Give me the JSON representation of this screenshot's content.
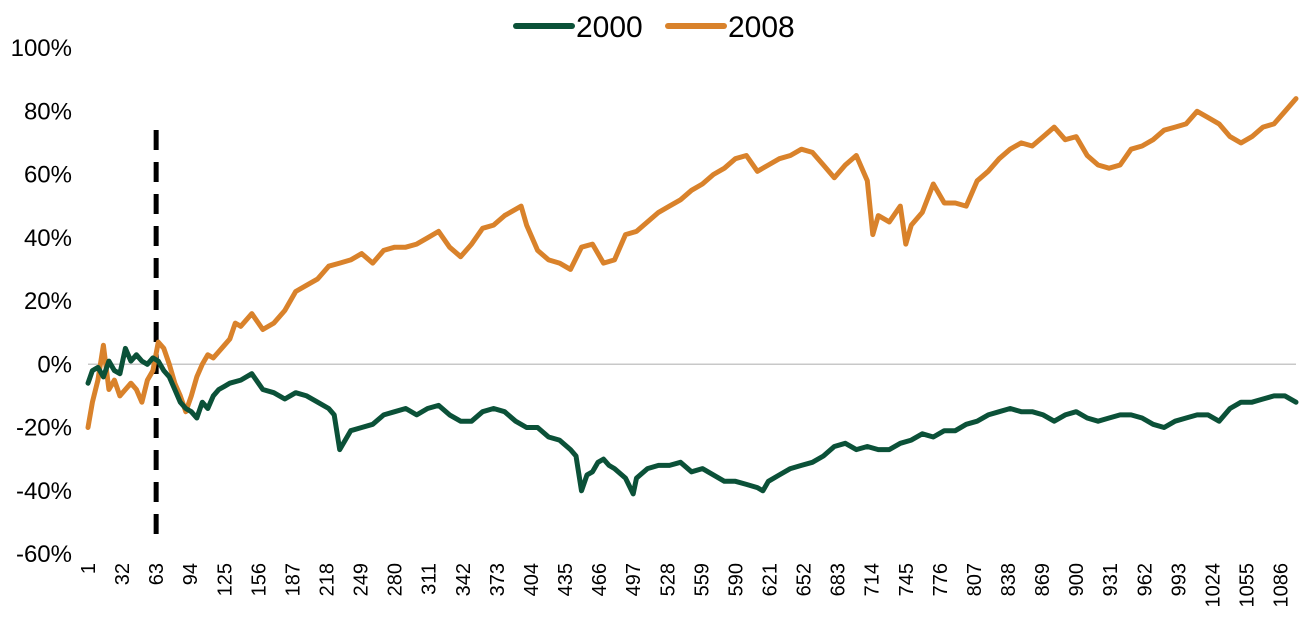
{
  "chart_data": {
    "type": "line",
    "title": "",
    "xlabel": "",
    "ylabel": "",
    "xlim": [
      1,
      1100
    ],
    "ylim": [
      -60,
      100
    ],
    "y_ticks": [
      "-60%",
      "-40%",
      "-20%",
      "0%",
      "20%",
      "40%",
      "60%",
      "80%",
      "100%"
    ],
    "y_tick_values": [
      -60,
      -40,
      -20,
      0,
      20,
      40,
      60,
      80,
      100
    ],
    "x_ticks": [
      1,
      32,
      63,
      94,
      125,
      156,
      187,
      218,
      249,
      280,
      311,
      342,
      373,
      404,
      435,
      466,
      497,
      528,
      559,
      590,
      621,
      652,
      683,
      714,
      745,
      776,
      807,
      838,
      869,
      900,
      931,
      962,
      993,
      1024,
      1055,
      1086
    ],
    "grid": false,
    "legend_position": "top-center",
    "reference_lines": [
      {
        "axis": "y",
        "value": 0,
        "style": "solid",
        "color": "#c8c8c8"
      },
      {
        "axis": "x",
        "value": 63,
        "style": "dashed",
        "color": "#000000"
      }
    ],
    "series": [
      {
        "name": "2000",
        "color": "#0b5138",
        "x": [
          1,
          5,
          10,
          15,
          20,
          25,
          30,
          35,
          40,
          45,
          50,
          55,
          60,
          65,
          70,
          75,
          80,
          85,
          90,
          95,
          100,
          105,
          110,
          115,
          120,
          125,
          130,
          140,
          150,
          160,
          170,
          180,
          190,
          200,
          210,
          220,
          225,
          230,
          240,
          250,
          260,
          270,
          280,
          290,
          300,
          310,
          320,
          330,
          340,
          350,
          360,
          370,
          380,
          390,
          400,
          410,
          420,
          430,
          440,
          445,
          450,
          455,
          460,
          465,
          470,
          475,
          480,
          490,
          497,
          500,
          510,
          520,
          530,
          540,
          550,
          560,
          570,
          580,
          590,
          600,
          610,
          615,
          620,
          630,
          640,
          650,
          660,
          670,
          680,
          690,
          700,
          710,
          720,
          730,
          740,
          750,
          760,
          770,
          780,
          790,
          800,
          810,
          820,
          830,
          840,
          850,
          860,
          870,
          880,
          890,
          900,
          910,
          920,
          930,
          940,
          950,
          960,
          970,
          980,
          990,
          1000,
          1010,
          1020,
          1030,
          1040,
          1050,
          1060,
          1070,
          1080,
          1090,
          1100
        ],
        "values": [
          -6,
          -2,
          -1,
          -4,
          1,
          -2,
          -3,
          5,
          1,
          3,
          1,
          0,
          2,
          1,
          -2,
          -4,
          -8,
          -12,
          -14,
          -15,
          -17,
          -12,
          -14,
          -10,
          -8,
          -7,
          -6,
          -5,
          -3,
          -8,
          -9,
          -11,
          -9,
          -10,
          -12,
          -14,
          -16,
          -27,
          -21,
          -20,
          -19,
          -16,
          -15,
          -14,
          -16,
          -14,
          -13,
          -16,
          -18,
          -18,
          -15,
          -14,
          -15,
          -18,
          -20,
          -20,
          -23,
          -24,
          -27,
          -29,
          -40,
          -35,
          -34,
          -31,
          -30,
          -32,
          -33,
          -36,
          -41,
          -36,
          -33,
          -32,
          -32,
          -31,
          -34,
          -33,
          -35,
          -37,
          -37,
          -38,
          -39,
          -40,
          -37,
          -35,
          -33,
          -32,
          -31,
          -29,
          -26,
          -25,
          -27,
          -26,
          -27,
          -27,
          -25,
          -24,
          -22,
          -23,
          -21,
          -21,
          -19,
          -18,
          -16,
          -15,
          -14,
          -15,
          -15,
          -16,
          -18,
          -16,
          -15,
          -17,
          -18,
          -17,
          -16,
          -16,
          -17,
          -19,
          -20,
          -18,
          -17,
          -16,
          -16,
          -18,
          -14,
          -12,
          -12,
          -11,
          -10,
          -10,
          -12
        ]
      },
      {
        "name": "2008",
        "color": "#d9822b",
        "x": [
          1,
          5,
          10,
          15,
          20,
          25,
          30,
          35,
          40,
          45,
          50,
          55,
          60,
          65,
          70,
          75,
          80,
          85,
          90,
          95,
          100,
          105,
          110,
          115,
          120,
          125,
          130,
          135,
          140,
          150,
          160,
          170,
          180,
          190,
          200,
          210,
          220,
          230,
          240,
          250,
          260,
          270,
          280,
          290,
          300,
          310,
          320,
          330,
          340,
          350,
          360,
          370,
          380,
          390,
          395,
          400,
          410,
          420,
          430,
          440,
          450,
          460,
          470,
          480,
          490,
          500,
          510,
          520,
          530,
          540,
          550,
          560,
          570,
          580,
          590,
          600,
          610,
          620,
          630,
          640,
          650,
          660,
          670,
          680,
          690,
          700,
          710,
          715,
          720,
          730,
          740,
          745,
          750,
          760,
          770,
          780,
          790,
          800,
          810,
          820,
          830,
          840,
          850,
          860,
          870,
          880,
          890,
          900,
          910,
          920,
          930,
          940,
          950,
          960,
          970,
          980,
          990,
          1000,
          1010,
          1020,
          1030,
          1040,
          1050,
          1060,
          1070,
          1080,
          1090,
          1100
        ],
        "values": [
          -20,
          -12,
          -5,
          6,
          -8,
          -5,
          -10,
          -8,
          -6,
          -8,
          -12,
          -5,
          -2,
          7,
          5,
          0,
          -6,
          -10,
          -15,
          -10,
          -4,
          0,
          3,
          2,
          4,
          6,
          8,
          13,
          12,
          16,
          11,
          13,
          17,
          23,
          25,
          27,
          31,
          32,
          33,
          35,
          32,
          36,
          37,
          37,
          38,
          40,
          42,
          37,
          34,
          38,
          43,
          44,
          47,
          49,
          50,
          44,
          36,
          33,
          32,
          30,
          37,
          38,
          32,
          33,
          41,
          42,
          45,
          48,
          50,
          52,
          55,
          57,
          60,
          62,
          65,
          66,
          61,
          63,
          65,
          66,
          68,
          67,
          63,
          59,
          63,
          66,
          58,
          41,
          47,
          45,
          50,
          38,
          44,
          48,
          57,
          51,
          51,
          50,
          58,
          61,
          65,
          68,
          70,
          69,
          72,
          75,
          71,
          72,
          66,
          63,
          62,
          63,
          68,
          69,
          71,
          74,
          75,
          76,
          80,
          78,
          76,
          72,
          70,
          72,
          75,
          76,
          80,
          84
        ]
      }
    ]
  }
}
